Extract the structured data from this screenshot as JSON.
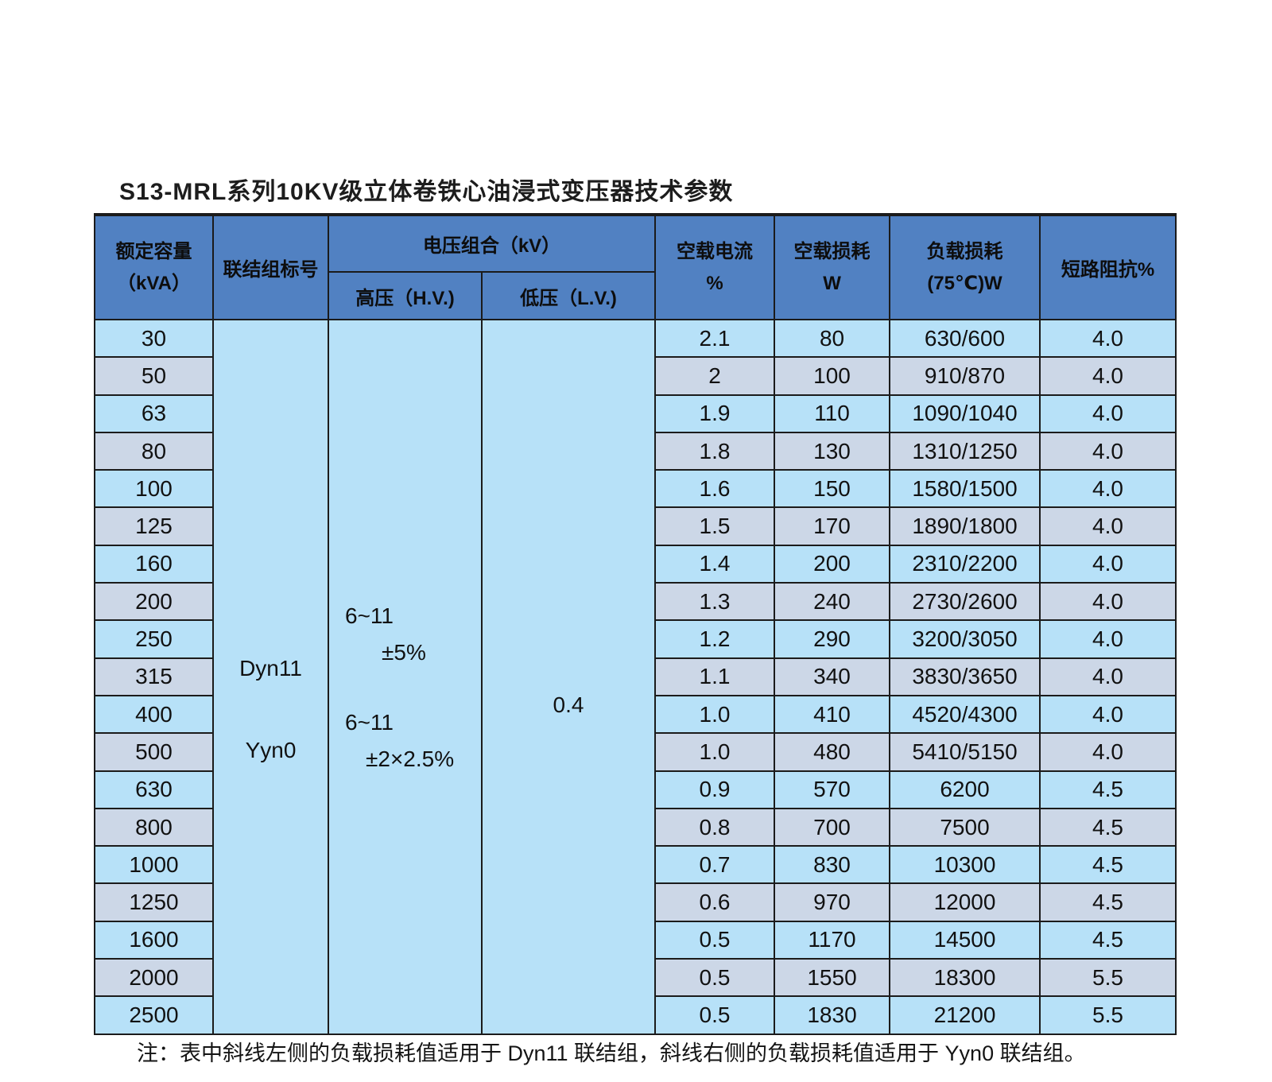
{
  "title": "S13-MRL系列10KV级立体卷铁心油浸式变压器技术参数",
  "note": "注：表中斜线左侧的负载损耗值适用于 Dyn11 联结组，斜线右侧的负载损耗值适用于 Yyn0 联结组。",
  "colors": {
    "header_bg": "#5181c2",
    "row_light": "#b7e1f8",
    "row_alt": "#ccd7e7",
    "border": "#1b1b1b",
    "text": "#111111"
  },
  "table": {
    "headers": {
      "capacity_line1": "额定容量",
      "capacity_line2": "（kVA）",
      "vector_group": "联结组标号",
      "voltage_combo": "电压组合（kV）",
      "hv": "高压（H.V.)",
      "lv": "低压（L.V.)",
      "no_load_current_line1": "空载电流",
      "no_load_current_line2": "%",
      "no_load_loss_line1": "空载损耗",
      "no_load_loss_line2": "W",
      "load_loss_line1": "负载损耗",
      "load_loss_line2": "(75℃)W",
      "impedance": "短路阻抗%"
    },
    "merged": {
      "vector_groups": [
        "Dyn11",
        "Yyn0"
      ],
      "hv_lines": [
        "6~11",
        "±5%",
        "6~11",
        "±2×2.5%"
      ],
      "lv_value": "0.4"
    },
    "rows": [
      {
        "capacity": "30",
        "no_load_current": "2.1",
        "no_load_loss": "80",
        "load_loss": "630/600",
        "impedance": "4.0"
      },
      {
        "capacity": "50",
        "no_load_current": "2",
        "no_load_loss": "100",
        "load_loss": "910/870",
        "impedance": "4.0"
      },
      {
        "capacity": "63",
        "no_load_current": "1.9",
        "no_load_loss": "110",
        "load_loss": "1090/1040",
        "impedance": "4.0"
      },
      {
        "capacity": "80",
        "no_load_current": "1.8",
        "no_load_loss": "130",
        "load_loss": "1310/1250",
        "impedance": "4.0"
      },
      {
        "capacity": "100",
        "no_load_current": "1.6",
        "no_load_loss": "150",
        "load_loss": "1580/1500",
        "impedance": "4.0"
      },
      {
        "capacity": "125",
        "no_load_current": "1.5",
        "no_load_loss": "170",
        "load_loss": "1890/1800",
        "impedance": "4.0"
      },
      {
        "capacity": "160",
        "no_load_current": "1.4",
        "no_load_loss": "200",
        "load_loss": "2310/2200",
        "impedance": "4.0"
      },
      {
        "capacity": "200",
        "no_load_current": "1.3",
        "no_load_loss": "240",
        "load_loss": "2730/2600",
        "impedance": "4.0"
      },
      {
        "capacity": "250",
        "no_load_current": "1.2",
        "no_load_loss": "290",
        "load_loss": "3200/3050",
        "impedance": "4.0"
      },
      {
        "capacity": "315",
        "no_load_current": "1.1",
        "no_load_loss": "340",
        "load_loss": "3830/3650",
        "impedance": "4.0"
      },
      {
        "capacity": "400",
        "no_load_current": "1.0",
        "no_load_loss": "410",
        "load_loss": "4520/4300",
        "impedance": "4.0"
      },
      {
        "capacity": "500",
        "no_load_current": "1.0",
        "no_load_loss": "480",
        "load_loss": "5410/5150",
        "impedance": "4.0"
      },
      {
        "capacity": "630",
        "no_load_current": "0.9",
        "no_load_loss": "570",
        "load_loss": "6200",
        "impedance": "4.5"
      },
      {
        "capacity": "800",
        "no_load_current": "0.8",
        "no_load_loss": "700",
        "load_loss": "7500",
        "impedance": "4.5"
      },
      {
        "capacity": "1000",
        "no_load_current": "0.7",
        "no_load_loss": "830",
        "load_loss": "10300",
        "impedance": "4.5"
      },
      {
        "capacity": "1250",
        "no_load_current": "0.6",
        "no_load_loss": "970",
        "load_loss": "12000",
        "impedance": "4.5"
      },
      {
        "capacity": "1600",
        "no_load_current": "0.5",
        "no_load_loss": "1170",
        "load_loss": "14500",
        "impedance": "4.5"
      },
      {
        "capacity": "2000",
        "no_load_current": "0.5",
        "no_load_loss": "1550",
        "load_loss": "18300",
        "impedance": "5.5"
      },
      {
        "capacity": "2500",
        "no_load_current": "0.5",
        "no_load_loss": "1830",
        "load_loss": "21200",
        "impedance": "5.5"
      }
    ]
  }
}
